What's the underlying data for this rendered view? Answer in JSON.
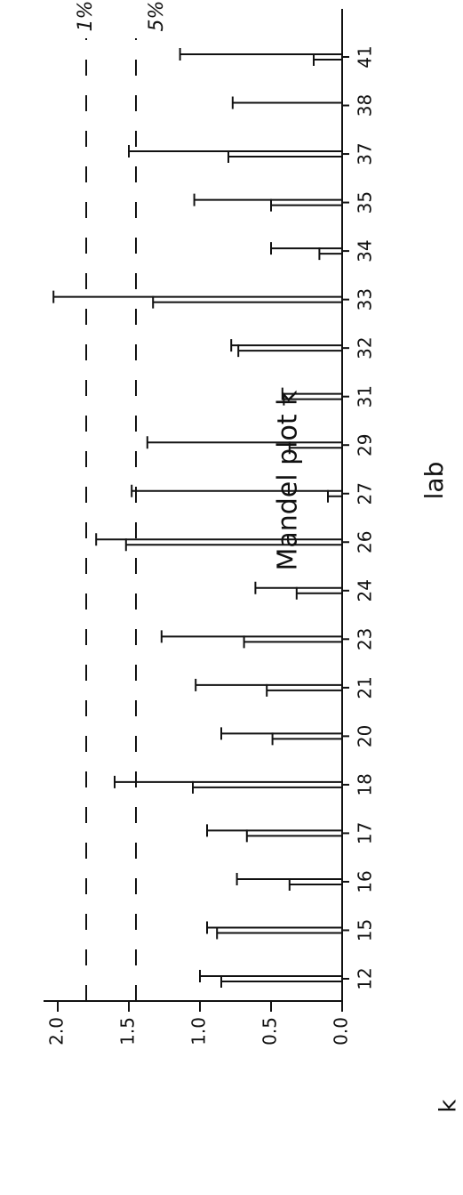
{
  "chart_data": {
    "type": "errorbar-k",
    "title": "Mandel plot k",
    "x_label": "lab",
    "y_label": "k",
    "categories": [
      "12",
      "15",
      "16",
      "17",
      "18",
      "20",
      "21",
      "23",
      "24",
      "26",
      "27",
      "29",
      "31",
      "32",
      "33",
      "34",
      "35",
      "37",
      "38",
      "41"
    ],
    "series": [
      {
        "color": "#111111",
        "values": [
          1.0,
          0.95,
          0.74,
          0.95,
          1.6,
          0.85,
          1.03,
          1.27,
          0.61,
          1.73,
          1.48,
          1.37,
          0.42,
          0.78,
          2.03,
          0.5,
          1.04,
          1.5,
          0.77,
          1.14
        ]
      },
      {
        "color": "#111111",
        "values": [
          0.85,
          0.88,
          0.37,
          0.67,
          1.05,
          0.49,
          0.53,
          0.69,
          0.32,
          1.52,
          0.1,
          0.37,
          0.41,
          0.73,
          1.33,
          0.16,
          0.5,
          0.8,
          null,
          0.2
        ]
      }
    ],
    "reference_lines": [
      {
        "label": "1%",
        "value": 1.8
      },
      {
        "label": "5%",
        "value": 1.45
      }
    ],
    "ylim": [
      0,
      2.1
    ],
    "yticks": [
      {
        "value": 0,
        "label": "0.0"
      },
      {
        "value": 0.5,
        "label": "0.5"
      },
      {
        "value": 1,
        "label": "1.0"
      },
      {
        "value": 1.5,
        "label": "1.5"
      },
      {
        "value": 2,
        "label": "2.0"
      }
    ]
  }
}
